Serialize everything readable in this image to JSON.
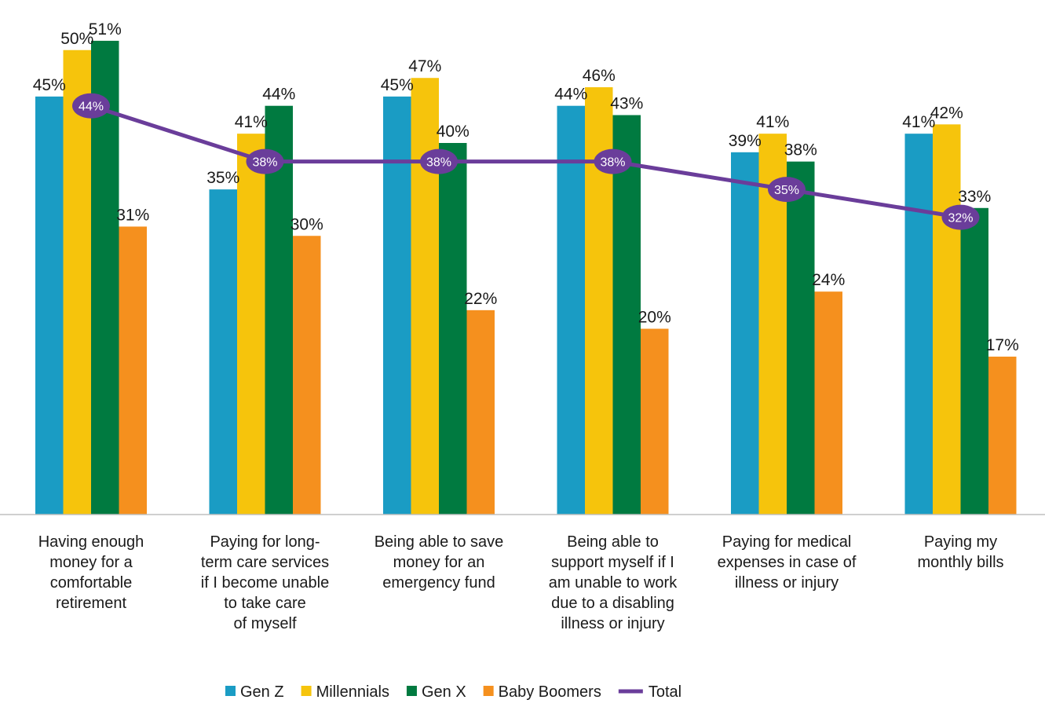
{
  "chart_data": {
    "type": "bar",
    "title": "",
    "xlabel": "",
    "ylabel": "",
    "ylim": [
      0,
      55
    ],
    "grid": false,
    "legend_position": "bottom",
    "categories": [
      [
        "Having enough",
        "money for a",
        "comfortable",
        "retirement"
      ],
      [
        "Paying for long-",
        "term care services",
        "if I become unable",
        "to take care",
        "of myself"
      ],
      [
        "Being able to save",
        "money for an",
        "emergency fund"
      ],
      [
        "Being able to",
        "support myself if I",
        "am unable to work",
        "due to a disabling",
        "illness or injury"
      ],
      [
        "Paying for medical",
        "expenses in case of",
        "illness or injury"
      ],
      [
        "Paying my",
        "monthly bills"
      ]
    ],
    "series": [
      {
        "name": "Gen Z",
        "color": "#1a9cc4",
        "values": [
          45,
          35,
          45,
          44,
          39,
          41
        ]
      },
      {
        "name": "Millennials",
        "color": "#f6c40c",
        "values": [
          50,
          41,
          47,
          46,
          41,
          42
        ]
      },
      {
        "name": "Gen X",
        "color": "#007a40",
        "values": [
          51,
          44,
          40,
          43,
          38,
          33
        ]
      },
      {
        "name": "Baby Boomers",
        "color": "#f5901e",
        "values": [
          31,
          30,
          22,
          20,
          24,
          17
        ]
      }
    ],
    "line": {
      "name": "Total",
      "color": "#6a3d9a",
      "values": [
        44,
        38,
        38,
        38,
        35,
        32
      ]
    },
    "value_suffix": "%"
  }
}
